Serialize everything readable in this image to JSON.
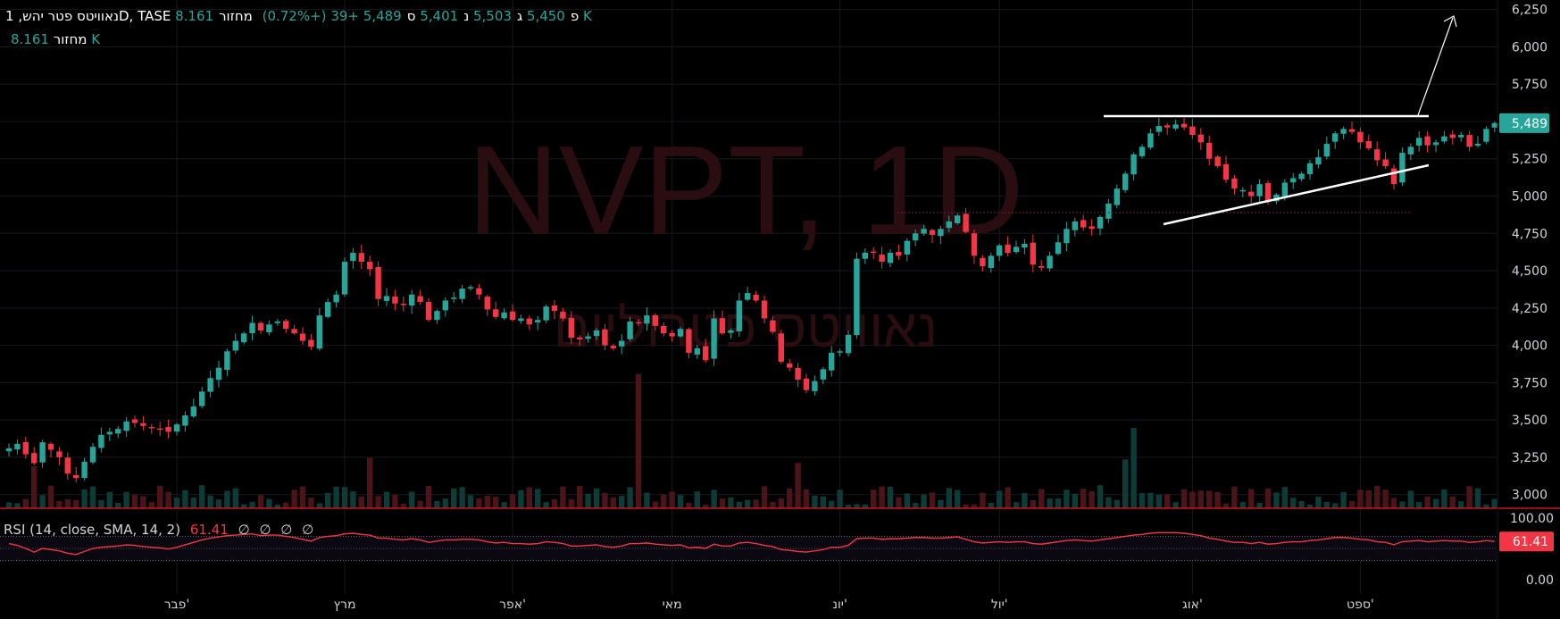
{
  "header": {
    "symbol_line": "נאוויטס פטר יהש, 1D, TASE",
    "open_label": "פ",
    "open": "5,450",
    "high_label": "ג",
    "high": "5,503",
    "low_label": "נ",
    "low": "5,401",
    "close_label": "ס",
    "close": "5,489",
    "change": "+39 (+0.72%)",
    "volume_label": "מחזור",
    "volume": "8.161 K"
  },
  "watermark": {
    "title": "NVPT, 1D",
    "subtitle": "נאוויטס פטרוליום"
  },
  "rsi": {
    "label": "RSI (14, close, SMA, 14, 2)",
    "value": "61.41",
    "empties": [
      "∅",
      "∅",
      "∅",
      "∅"
    ]
  },
  "colors": {
    "up": "#26a69a",
    "down": "#f23645",
    "background": "#000000",
    "grid": "#16191f",
    "rsi_line": "#f23645",
    "price_badge": "#26a69a"
  },
  "chart_data": {
    "type": "candlestick",
    "price_axis": {
      "ticks": [
        3000,
        3250,
        3500,
        3750,
        4000,
        4250,
        4500,
        4750,
        5000,
        5250,
        5500,
        5750,
        6000,
        6250
      ],
      "tick_labels": [
        "3,000",
        "3,250",
        "3,500",
        "3,750",
        "4,000",
        "4,250",
        "4,500",
        "4,750",
        "5,000",
        "5,250",
        "5,500",
        "5,750",
        "6,000",
        "6,250"
      ],
      "range": [
        2980,
        6260
      ],
      "last_price": 5489,
      "last_price_label": "5,489"
    },
    "rsi_axis": {
      "tick_labels": [
        "100.00",
        "0.00"
      ],
      "range": [
        0,
        100
      ],
      "upper_band": 70,
      "lower_band": 30,
      "last_value": 61.41,
      "last_value_label": "61.41"
    },
    "x_axis": {
      "labels": [
        "פבר'",
        "מרץ",
        "אפר'",
        "מאי",
        "יונ'",
        "יול'",
        "אוג'",
        "ספט'"
      ],
      "label_at_bar": [
        20,
        40,
        60,
        79,
        99,
        118,
        141,
        161
      ]
    },
    "closes": [
      3310,
      3340,
      3270,
      3210,
      3350,
      3300,
      3250,
      3140,
      3110,
      3220,
      3320,
      3400,
      3420,
      3440,
      3490,
      3480,
      3460,
      3450,
      3440,
      3420,
      3470,
      3530,
      3590,
      3690,
      3780,
      3850,
      3960,
      4030,
      4080,
      4150,
      4100,
      4140,
      4160,
      4110,
      4080,
      4030,
      3990,
      4200,
      4290,
      4340,
      4560,
      4620,
      4560,
      4510,
      4310,
      4330,
      4280,
      4270,
      4340,
      4290,
      4170,
      4230,
      4300,
      4320,
      4380,
      4390,
      4340,
      4240,
      4190,
      4220,
      4170,
      4180,
      4140,
      4170,
      4260,
      4230,
      4180,
      4050,
      4040,
      4060,
      4100,
      4000,
      3980,
      4030,
      4160,
      4150,
      4200,
      4130,
      4080,
      4060,
      4110,
      3950,
      3980,
      3900,
      4180,
      4080,
      4100,
      4300,
      4350,
      4300,
      4180,
      4090,
      3890,
      3850,
      3770,
      3700,
      3760,
      3840,
      3950,
      3960,
      4070,
      4580,
      4620,
      4620,
      4560,
      4620,
      4600,
      4700,
      4750,
      4780,
      4740,
      4780,
      4830,
      4870,
      4760,
      4600,
      4530,
      4600,
      4670,
      4620,
      4660,
      4680,
      4540,
      4520,
      4600,
      4690,
      4780,
      4830,
      4790,
      4780,
      4860,
      4950,
      5050,
      5150,
      5280,
      5330,
      5420,
      5470,
      5460,
      5480,
      5460,
      5410,
      5360,
      5250,
      5200,
      5110,
      5050,
      5040,
      5000,
      5080,
      4960,
      5010,
      5090,
      5120,
      5150,
      5220,
      5260,
      5350,
      5420,
      5450,
      5430,
      5360,
      5320,
      5240,
      5200,
      5080,
      5290,
      5330,
      5390,
      5340,
      5360,
      5400,
      5390,
      5410,
      5330,
      5350,
      5450,
      5489
    ],
    "series": [
      {
        "name": "RSI",
        "values": [
          58,
          55,
          50,
          44,
          50,
          48,
          46,
          42,
          40,
          45,
          50,
          52,
          53,
          54,
          56,
          55,
          53,
          52,
          51,
          49,
          52,
          56,
          60,
          64,
          67,
          69,
          71,
          72,
          73,
          74,
          71,
          72,
          72,
          70,
          68,
          65,
          62,
          68,
          70,
          71,
          74,
          75,
          73,
          72,
          67,
          67,
          65,
          64,
          66,
          64,
          60,
          62,
          64,
          64,
          65,
          65,
          64,
          61,
          59,
          60,
          58,
          58,
          57,
          58,
          61,
          60,
          58,
          54,
          54,
          55,
          56,
          53,
          52,
          54,
          58,
          58,
          59,
          57,
          56,
          55,
          56,
          51,
          52,
          50,
          57,
          54,
          54,
          59,
          60,
          58,
          55,
          53,
          48,
          47,
          45,
          44,
          46,
          48,
          52,
          52,
          55,
          66,
          67,
          67,
          65,
          66,
          66,
          67,
          68,
          68,
          67,
          67,
          68,
          69,
          65,
          61,
          59,
          60,
          61,
          60,
          61,
          61,
          58,
          57,
          59,
          61,
          63,
          64,
          63,
          62,
          64,
          66,
          68,
          70,
          72,
          73,
          75,
          76,
          76,
          76,
          75,
          73,
          71,
          67,
          65,
          62,
          60,
          60,
          58,
          60,
          57,
          58,
          60,
          61,
          61,
          63,
          64,
          66,
          68,
          68,
          67,
          65,
          64,
          61,
          60,
          56,
          61,
          62,
          63,
          61,
          62,
          63,
          62,
          62,
          60,
          61,
          63,
          61.41
        ]
      }
    ]
  }
}
